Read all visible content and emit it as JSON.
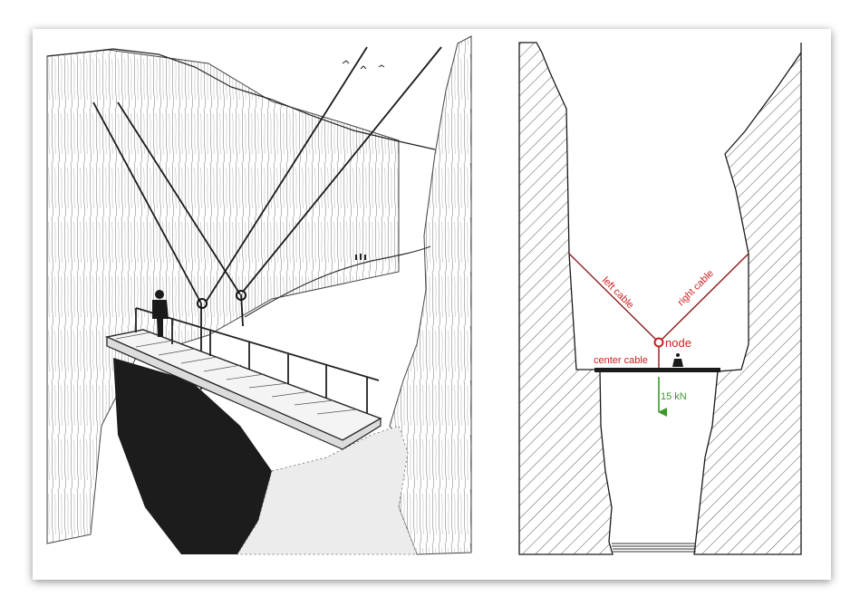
{
  "diagram": {
    "labels": {
      "left_cable": "left cable",
      "right_cable": "right cable",
      "node": "node",
      "center_cable": "center cable",
      "load": "15 kN"
    },
    "colors": {
      "label_red": "#cc1f1f",
      "load_green": "#3a9a2a",
      "line": "#1a1a1a"
    }
  }
}
